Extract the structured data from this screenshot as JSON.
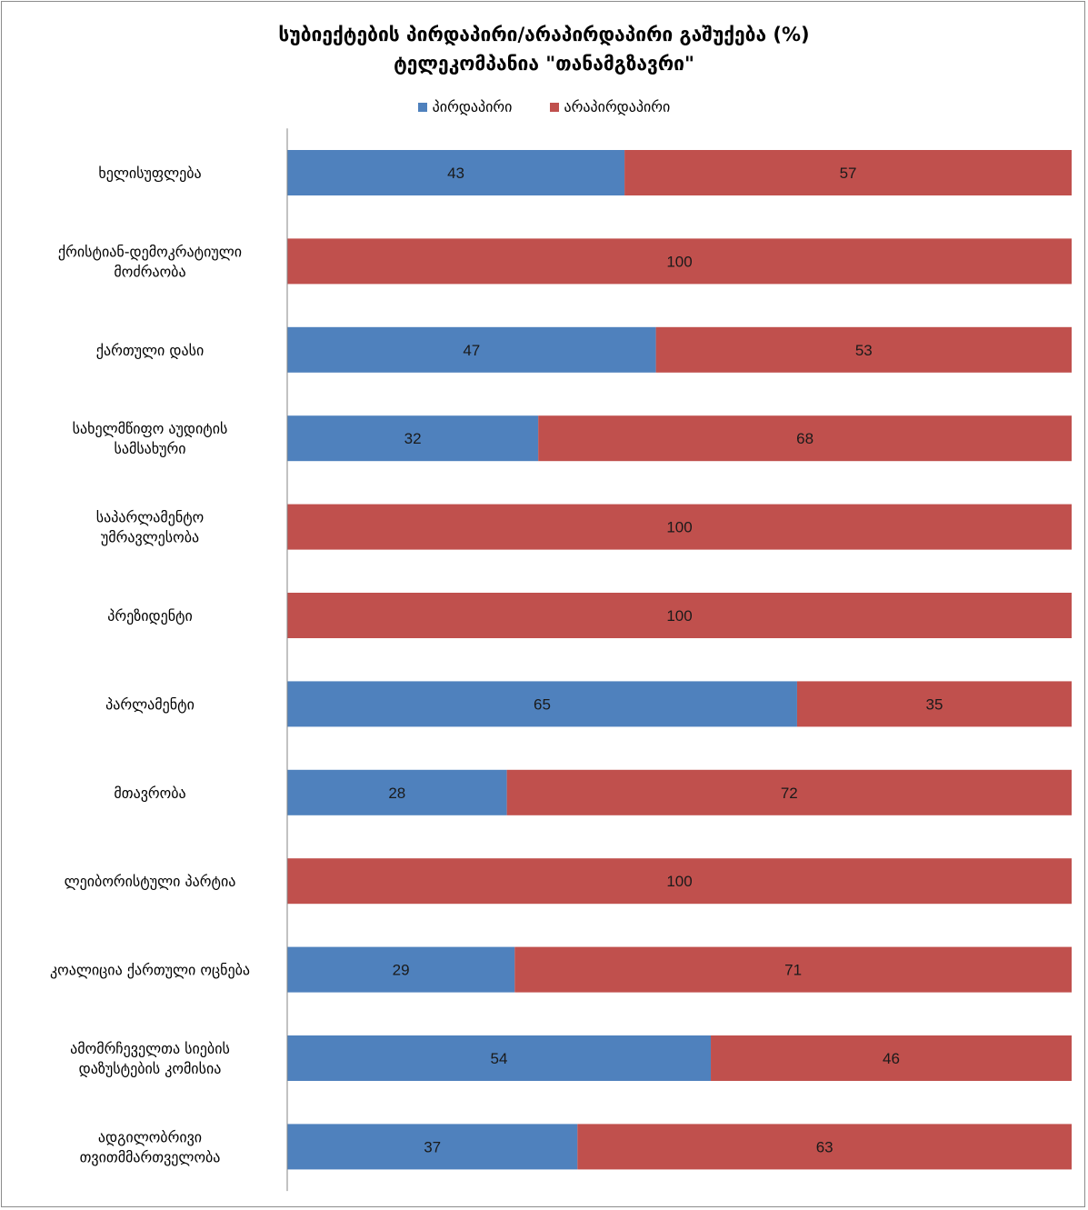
{
  "chart_data": {
    "type": "bar",
    "orientation": "horizontal",
    "stacked": true,
    "title": "სუბიექტების პირდაპირი/არაპირდაპირი გაშუქება (%)",
    "subtitle": "ტელეკომპანია \"თანამგზავრი\"",
    "xlim": [
      0,
      100
    ],
    "grid": false,
    "legend_position": "top",
    "categories": [
      [
        "ხელისუფლება"
      ],
      [
        "ქრისტიან-დემოკრატიული",
        "მოძრაობა"
      ],
      [
        "ქართული დასი"
      ],
      [
        "სახელმწიფო აუდიტის",
        "სამსახური"
      ],
      [
        "საპარლამენტო",
        "უმრავლესობა"
      ],
      [
        "პრეზიდენტი"
      ],
      [
        "პარლამენტი"
      ],
      [
        "მთავრობა"
      ],
      [
        "ლეიბორისტული პარტია"
      ],
      [
        "კოალიცია ქართული ოცნება"
      ],
      [
        "ამომრჩეველთა სიების",
        "დაზუსტების კომისია"
      ],
      [
        "ადგილობრივი",
        "თვითმმართველობა"
      ]
    ],
    "series": [
      {
        "name": "პირდაპირი",
        "color": "#4f81bd",
        "values": [
          43,
          0,
          47,
          32,
          0,
          0,
          65,
          28,
          0,
          29,
          54,
          37
        ]
      },
      {
        "name": "არაპირდაპირი",
        "color": "#c0504d",
        "values": [
          57,
          100,
          53,
          68,
          100,
          100,
          35,
          72,
          100,
          71,
          46,
          63
        ]
      }
    ]
  }
}
